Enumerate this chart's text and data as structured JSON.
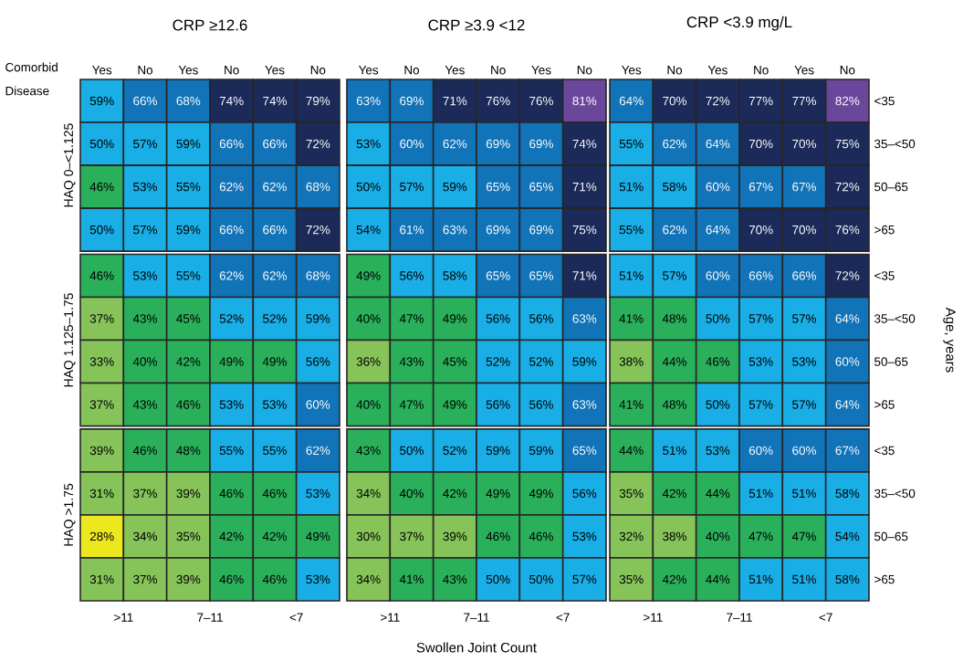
{
  "chart_data": [
    {
      "type": "heatmap",
      "title": "CRP ≥12.6",
      "xlabel": "Comorbid Disease",
      "annotations": [
        "HAQ 0–<1.125",
        "HAQ 1.125–1.75",
        "HAQ >1.75",
        ">11",
        "7–11",
        "<7"
      ],
      "categories": [
        "Yes",
        "No",
        "Yes",
        "No",
        "Yes",
        "No"
      ],
      "y_categories": [
        null,
        null,
        null,
        null,
        null,
        null,
        null,
        null,
        null,
        null,
        null,
        null
      ],
      "cells": [
        [
          59,
          66,
          68,
          74,
          74,
          79
        ],
        [
          50,
          57,
          59,
          66,
          66,
          72
        ],
        [
          46,
          53,
          55,
          62,
          62,
          68
        ],
        [
          50,
          57,
          59,
          66,
          66,
          72
        ],
        [
          46,
          53,
          55,
          62,
          62,
          68
        ],
        [
          37,
          43,
          45,
          52,
          52,
          59
        ],
        [
          33,
          40,
          42,
          49,
          49,
          56
        ],
        [
          37,
          43,
          46,
          53,
          53,
          60
        ],
        [
          39,
          46,
          48,
          55,
          55,
          62
        ],
        [
          31,
          37,
          39,
          46,
          46,
          53
        ],
        [
          28,
          34,
          35,
          42,
          42,
          49
        ],
        [
          31,
          37,
          39,
          46,
          46,
          53
        ]
      ],
      "cell_labels": [
        [
          "59%",
          "66%",
          "68%",
          "74%",
          "74%",
          "79%"
        ],
        [
          "50%",
          "57%",
          "59%",
          "66%",
          "66%",
          "72%"
        ],
        [
          "46%",
          "53%",
          "55%",
          "62%",
          "62%",
          "68%"
        ],
        [
          "50%",
          "57%",
          "59%",
          "66%",
          "66%",
          "72%"
        ],
        [
          "46%",
          "53%",
          "55%",
          "62%",
          "62%",
          "68%"
        ],
        [
          "37%",
          "43%",
          "45%",
          "52%",
          "52%",
          "59%"
        ],
        [
          "33%",
          "40%",
          "42%",
          "49%",
          "49%",
          "56%"
        ],
        [
          "37%",
          "43%",
          "46%",
          "53%",
          "53%",
          "60%"
        ],
        [
          "39%",
          "46%",
          "48%",
          "55%",
          "55%",
          "62%"
        ],
        [
          "31%",
          "37%",
          "39%",
          "46%",
          "46%",
          "53%"
        ],
        [
          "28%",
          "34%",
          "35%",
          "42%",
          "42%",
          "49%"
        ],
        [
          "31%",
          "37%",
          "39%",
          "46%",
          "46%",
          "53%"
        ]
      ]
    },
    {
      "type": "heatmap",
      "title": "CRP ≥3.9 <12",
      "xlabel": "Swollen Joint Count",
      "annotations": [
        ">11",
        "7–11",
        "<7"
      ],
      "categories": [
        "Yes",
        "No",
        "Yes",
        "No",
        "Yes",
        "No"
      ],
      "y_categories": [
        null,
        null,
        null,
        null,
        null,
        null,
        null,
        null,
        null,
        null,
        null,
        null
      ],
      "cells": [
        [
          63,
          69,
          71,
          76,
          76,
          81
        ],
        [
          53,
          60,
          62,
          69,
          69,
          74
        ],
        [
          50,
          57,
          59,
          65,
          65,
          71
        ],
        [
          54,
          61,
          63,
          69,
          69,
          75
        ],
        [
          49,
          56,
          58,
          65,
          65,
          71
        ],
        [
          40,
          47,
          49,
          56,
          56,
          63
        ],
        [
          36,
          43,
          45,
          52,
          52,
          59
        ],
        [
          40,
          47,
          49,
          56,
          56,
          63
        ],
        [
          43,
          50,
          52,
          59,
          59,
          65
        ],
        [
          34,
          40,
          42,
          49,
          49,
          56
        ],
        [
          30,
          37,
          39,
          46,
          46,
          53
        ],
        [
          34,
          41,
          43,
          50,
          50,
          57
        ]
      ],
      "cell_labels": [
        [
          "63%",
          "69%",
          "71%",
          "76%",
          "76%",
          "81%"
        ],
        [
          "53%",
          "60%",
          "62%",
          "69%",
          "69%",
          "74%"
        ],
        [
          "50%",
          "57%",
          "59%",
          "65%",
          "65%",
          "71%"
        ],
        [
          "54%",
          "61%",
          "63%",
          "69%",
          "69%",
          "75%"
        ],
        [
          "49%",
          "56%",
          "58%",
          "65%",
          "65%",
          "71%"
        ],
        [
          "40%",
          "47%",
          "49%",
          "56%",
          "56%",
          "63%"
        ],
        [
          "36%",
          "43%",
          "45%",
          "52%",
          "52%",
          "59%"
        ],
        [
          "40%",
          "47%",
          "49%",
          "56%",
          "56%",
          "63%"
        ],
        [
          "43%",
          "50%",
          "52%",
          "59%",
          "59%",
          "65%"
        ],
        [
          "34%",
          "40%",
          "42%",
          "49%",
          "49%",
          "56%"
        ],
        [
          "30%",
          "37%",
          "39%",
          "46%",
          "46%",
          "53%"
        ],
        [
          "34%",
          "41%",
          "43%",
          "50%",
          "50%",
          "57%"
        ]
      ]
    },
    {
      "type": "heatmap",
      "title": "CRP <3.9 mg/L",
      "ylabel": "Age, years",
      "categories": [
        "Yes",
        "No",
        "Yes",
        "No",
        "Yes",
        "No"
      ],
      "y_categories": [
        "<35",
        "35–<50",
        "50–65",
        ">65",
        "<35",
        "35–<50",
        "50–65",
        ">65",
        "<35",
        "35–<50",
        "50–65",
        ">65"
      ],
      "annotations": [
        ">11",
        "7–11",
        "<7"
      ],
      "cells": [
        [
          64,
          70,
          72,
          77,
          77,
          82
        ],
        [
          55,
          62,
          64,
          70,
          70,
          75
        ],
        [
          51,
          58,
          60,
          67,
          67,
          72
        ],
        [
          55,
          62,
          64,
          70,
          70,
          76
        ],
        [
          51,
          57,
          60,
          66,
          66,
          72
        ],
        [
          41,
          48,
          50,
          57,
          57,
          64
        ],
        [
          38,
          44,
          46,
          53,
          53,
          60
        ],
        [
          41,
          48,
          50,
          57,
          57,
          64
        ],
        [
          44,
          51,
          53,
          60,
          60,
          67
        ],
        [
          35,
          42,
          44,
          51,
          51,
          58
        ],
        [
          32,
          38,
          40,
          47,
          47,
          54
        ],
        [
          35,
          42,
          44,
          51,
          51,
          58
        ]
      ],
      "cell_labels": [
        [
          "64%",
          "70%",
          "72%",
          "77%",
          "77%",
          "82%"
        ],
        [
          "55%",
          "62%",
          "64%",
          "70%",
          "70%",
          "75%"
        ],
        [
          "51%",
          "58%",
          "60%",
          "67%",
          "67%",
          "72%"
        ],
        [
          "55%",
          "62%",
          "64%",
          "70%",
          "70%",
          "76%"
        ],
        [
          "51%",
          "57%",
          "60%",
          "66%",
          "66%",
          "72%"
        ],
        [
          "41%",
          "48%",
          "50%",
          "57%",
          "57%",
          "64%"
        ],
        [
          "38%",
          "44%",
          "46%",
          "53%",
          "53%",
          "60%"
        ],
        [
          "41%",
          "48%",
          "50%",
          "57%",
          "57%",
          "64%"
        ],
        [
          "44%",
          "51%",
          "53%",
          "60%",
          "60%",
          "67%"
        ],
        [
          "35%",
          "42%",
          "44%",
          "51%",
          "51%",
          "58%"
        ],
        [
          "32%",
          "38%",
          "40%",
          "47%",
          "47%",
          "54%"
        ],
        [
          "35%",
          "42%",
          "44%",
          "51%",
          "51%",
          "58%"
        ]
      ]
    }
  ]
}
